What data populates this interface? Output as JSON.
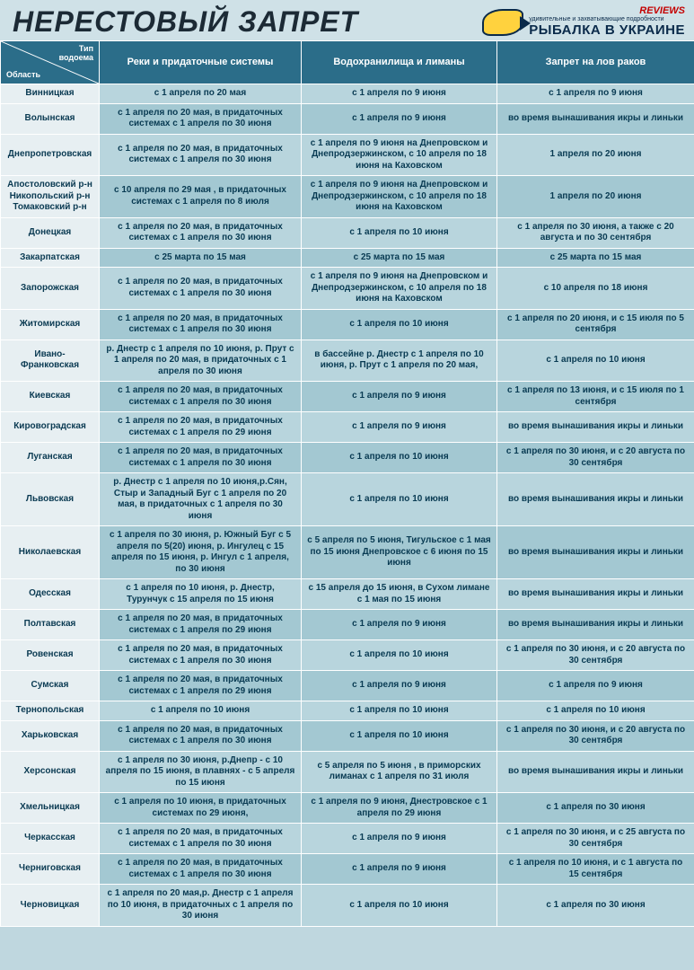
{
  "title": "НЕРЕСТОВЫЙ ЗАПРЕТ",
  "logo": {
    "reviews": "REVIEWS",
    "sub": "удивительные и захватывающие подробности",
    "brand": "РЫБАЛКА В УКРАИНЕ"
  },
  "corner": {
    "top": "Тип\nводоема",
    "bottom": "Область"
  },
  "columns": [
    "Реки и придаточные системы",
    "Водохранилища и лиманы",
    "Запрет на лов раков"
  ],
  "rows": [
    {
      "region": "Винницкая",
      "c": [
        "с 1 апреля по 20 мая",
        "с 1 апреля по 9 июня",
        "с 1 апреля по 9 июня"
      ]
    },
    {
      "region": "Волынская",
      "c": [
        "с 1 апреля по 20 мая, в придаточных системах с 1 апреля по 30 июня",
        "с 1 апреля по 9 июня",
        "во время вынашивания икры и линьки"
      ]
    },
    {
      "region": "Днепропетровская",
      "c": [
        "с 1 апреля по 20 мая, в придаточных системах с 1 апреля по 30 июня",
        "с 1 апреля по 9 июня на Днепровском и Днепродзержинском, с 10 апреля по 18 июня на Каховском",
        "1 апреля по 20 июня"
      ]
    },
    {
      "region": "Апостоловский р-н\nНикопольский р-н\nТомаковский р-н",
      "c": [
        "с 10 апреля по 29 мая , в придаточных системах с 1 апреля по 8 июля",
        "с 1 апреля по 9 июня на Днепровском и Днепродзержинском, с 10 апреля по 18 июня на Каховском",
        "1 апреля по 20 июня"
      ]
    },
    {
      "region": "Донецкая",
      "c": [
        "с 1 апреля по 20 мая, в придаточных системах с 1 апреля по 30 июня",
        "с 1 апреля по 10 июня",
        "с 1 апреля по 30 июня, а также с 20 августа и по 30 сентября"
      ]
    },
    {
      "region": "Закарпатская",
      "c": [
        "с 25 марта по 15 мая",
        "с 25 марта по 15 мая",
        "с 25 марта по 15 мая"
      ]
    },
    {
      "region": "Запорожская",
      "c": [
        "с 1 апреля по 20 мая, в придаточных системах с 1 апреля по 30 июня",
        "с 1 апреля по 9 июня на Днепровском и Днепродзержинском, с 10 апреля по 18 июня на Каховском",
        "с 10 апреля по 18 июня"
      ]
    },
    {
      "region": "Житомирская",
      "c": [
        "с 1 апреля по 20 мая, в придаточных системах с 1 апреля по 30 июня",
        "с 1 апреля по 10 июня",
        "с 1 апреля по 20 июня, и с 15 июля по 5 сентября"
      ]
    },
    {
      "region": "Ивано-Франковская",
      "c": [
        "р. Днестр с 1 апреля по 10 июня, р. Прут с 1 апреля по 20 мая,  в придаточных с 1 апреля по 30 июня",
        "в бассейне р. Днестр с 1 апреля по 10 июня, р. Прут с 1 апреля по 20 мая,",
        "с 1 апреля по 10 июня"
      ]
    },
    {
      "region": "Киевская",
      "c": [
        "с 1 апреля по 20 мая, в придаточных системах с 1 апреля по 30 июня",
        "с 1 апреля по 9 июня",
        "с 1 апреля по 13 июня, и с 15 июля по 1 сентября"
      ]
    },
    {
      "region": "Кировоградская",
      "c": [
        "с 1 апреля по 20 мая, в придаточных системах с 1 апреля по 29 июня",
        "с 1 апреля по 9 июня",
        "во время вынашивания икры и линьки"
      ]
    },
    {
      "region": "Луганская",
      "c": [
        "с 1 апреля по 20 мая, в придаточных системах с 1 апреля по 30 июня",
        "с 1 апреля по 10 июня",
        "с 1 апреля по 30 июня, и с 20 августа по 30 сентября"
      ]
    },
    {
      "region": "Львовская",
      "c": [
        "р. Днестр с 1 апреля по 10 июня,р.Сян, Стыр и Западный Буг с 1 апреля по 20 мая, в придаточных с 1 апреля по 30 июня",
        "с 1 апреля по 10 июня",
        "во время вынашивания икры и линьки"
      ]
    },
    {
      "region": "Николаевская",
      "c": [
        "с 1 апреля по 30 июня, р. Южный Буг с 5 апреля по 5(20) июня, р. Ингулец с 15 апреля по 15 июня, р. Ингул с 1 апреля, по 30 июня",
        "с 5 апреля по 5 июня, Тигульское с 1 мая по 15 июня Днепровское с 6 июня по 15 июня",
        "во время вынашивания икры и линьки"
      ]
    },
    {
      "region": "Одесская",
      "c": [
        "с 1 апреля по 10 июня, р. Днестр, Турунчук с 15 апреля по 15 июня",
        "с 15 апреля до 15 июня, в Сухом лимане с 1 мая по 15 июня",
        "во время вынашивания икры и линьки"
      ]
    },
    {
      "region": "Полтавская",
      "c": [
        "с 1 апреля по 20 мая, в придаточных системах с 1 апреля по 29 июня",
        "с 1 апреля по 9 июня",
        "во время вынашивания икры и линьки"
      ]
    },
    {
      "region": "Ровенская",
      "c": [
        "с 1 апреля по 20 мая, в придаточных системах с 1 апреля по 30 июня",
        "с 1 апреля по 10 июня",
        "с 1 апреля по 30 июня, и с 20 августа по 30 сентября"
      ]
    },
    {
      "region": "Сумская",
      "c": [
        "с 1 апреля по 20 мая, в придаточных системах с 1 апреля по 29 июня",
        "с 1 апреля по 9 июня",
        "с 1 апреля по 9 июня"
      ]
    },
    {
      "region": "Тернопольская",
      "c": [
        "с 1 апреля по 10 июня",
        "с 1 апреля по 10 июня",
        "с 1 апреля по 10 июня"
      ]
    },
    {
      "region": "Харьковская",
      "c": [
        "с 1 апреля по 20 мая, в придаточных системах с 1 апреля по 30 июня",
        "с 1 апреля по 10 июня",
        "с 1 апреля по 30 июня, и с 20 августа по 30 сентября"
      ]
    },
    {
      "region": "Херсонская",
      "c": [
        "с 1 апреля по 30 июня, р.Днепр - с 10 апреля по 15 июня, в плавнях - с 5 апреля по 15 июня",
        "с 5 апреля по 5 июня , в приморских лиманах с 1 апреля по 31 июля",
        "во время вынашивания икры и линьки"
      ]
    },
    {
      "region": "Хмельницкая",
      "c": [
        "с 1 апреля по 10 июня, в придаточных системах по 29 июня,",
        "с 1 апреля по 9 июня, Днестровское с 1 апреля по 29 июня",
        "с 1 апреля по 30 июня"
      ]
    },
    {
      "region": "Черкасская",
      "c": [
        "с 1 апреля по 20 мая, в придаточных системах с 1 апреля по 30 июня",
        "с 1 апреля по 9 июня",
        "с 1 апреля по 30 июня, и с 25 августа по 30 сентября"
      ]
    },
    {
      "region": "Черниговская",
      "c": [
        "с 1 апреля по 20 мая, в придаточных системах с 1 апреля по 30 июня",
        "с 1 апреля по 9 июня",
        "с 1 апреля по 10 июня, и с 1 августа по 15 сентября"
      ]
    },
    {
      "region": "Черновицкая",
      "c": [
        "с 1 апреля по 20 мая,р. Днестр с 1 апреля по 10 июня, в придаточных с 1 апреля по 30 июня",
        "с 1 апреля по 10 июня",
        "с 1 апреля по 30 июня"
      ]
    }
  ]
}
